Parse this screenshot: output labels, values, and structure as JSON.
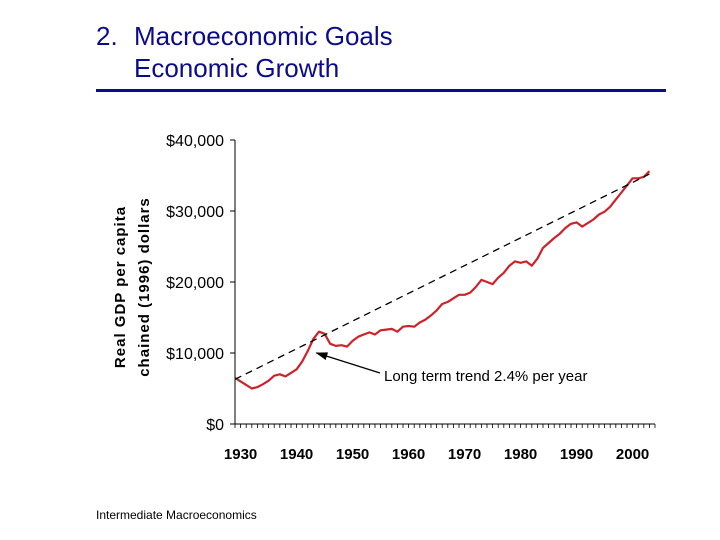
{
  "header": {
    "number": "2.",
    "title": "Macroeconomic Goals",
    "subtitle": "Economic Growth"
  },
  "footer": {
    "text": "Intermediate Macroeconomics"
  },
  "colors": {
    "title": "#0b0b8c",
    "series": "#d0212b",
    "trend": "#000000"
  },
  "chart_data": {
    "type": "line",
    "title": "",
    "ylabel_line1": "Real GDP per capita",
    "ylabel_line2": "chained (1996) dollars",
    "xlabel": "",
    "xlim": [
      1929,
      2004
    ],
    "ylim": [
      0,
      40000
    ],
    "ytick_values": [
      0,
      10000,
      20000,
      30000,
      40000
    ],
    "ytick_labels": [
      "$0",
      "$10,000",
      "$20,000",
      "$30,000",
      "$40,000"
    ],
    "xtick_values": [
      1930,
      1940,
      1950,
      1960,
      1970,
      1980,
      1990,
      2000
    ],
    "xtick_labels": [
      "1930",
      "1940",
      "1950",
      "1960",
      "1970",
      "1980",
      "1990",
      "2000"
    ],
    "grid": false,
    "series": [
      {
        "name": "Real GDP per capita",
        "style": "solid",
        "x": [
          1929,
          1930,
          1931,
          1932,
          1933,
          1934,
          1935,
          1936,
          1937,
          1938,
          1939,
          1940,
          1941,
          1942,
          1943,
          1944,
          1945,
          1946,
          1947,
          1948,
          1949,
          1950,
          1951,
          1952,
          1953,
          1954,
          1955,
          1956,
          1957,
          1958,
          1959,
          1960,
          1961,
          1962,
          1963,
          1964,
          1965,
          1966,
          1967,
          1968,
          1969,
          1970,
          1971,
          1972,
          1973,
          1974,
          1975,
          1976,
          1977,
          1978,
          1979,
          1980,
          1981,
          1982,
          1983,
          1984,
          1985,
          1986,
          1987,
          1988,
          1989,
          1990,
          1991,
          1992,
          1993,
          1994,
          1995,
          1996,
          1997,
          1998,
          1999,
          2000,
          2001,
          2002,
          2003
        ],
        "values": [
          6500,
          6000,
          5500,
          5000,
          5200,
          5600,
          6100,
          6800,
          7000,
          6700,
          7200,
          7700,
          8800,
          10300,
          12000,
          13000,
          12700,
          11300,
          11000,
          11100,
          10900,
          11700,
          12300,
          12600,
          12900,
          12600,
          13200,
          13300,
          13400,
          13000,
          13700,
          13800,
          13700,
          14300,
          14700,
          15300,
          16000,
          16900,
          17200,
          17700,
          18200,
          18200,
          18500,
          19300,
          20300,
          20000,
          19700,
          20600,
          21300,
          22300,
          22900,
          22700,
          22900,
          22300,
          23300,
          24800,
          25500,
          26200,
          26800,
          27600,
          28200,
          28400,
          27800,
          28300,
          28800,
          29500,
          29900,
          30600,
          31600,
          32600,
          33600,
          34600,
          34600,
          34800,
          35600
        ]
      },
      {
        "name": "Long term trend",
        "style": "dashed",
        "x": [
          1929,
          2003
        ],
        "values": [
          6300,
          35200
        ]
      }
    ],
    "annotation": {
      "text": "Long term trend 2.4% per year",
      "arrow_to": {
        "x": 1943,
        "y": 10300
      }
    }
  }
}
